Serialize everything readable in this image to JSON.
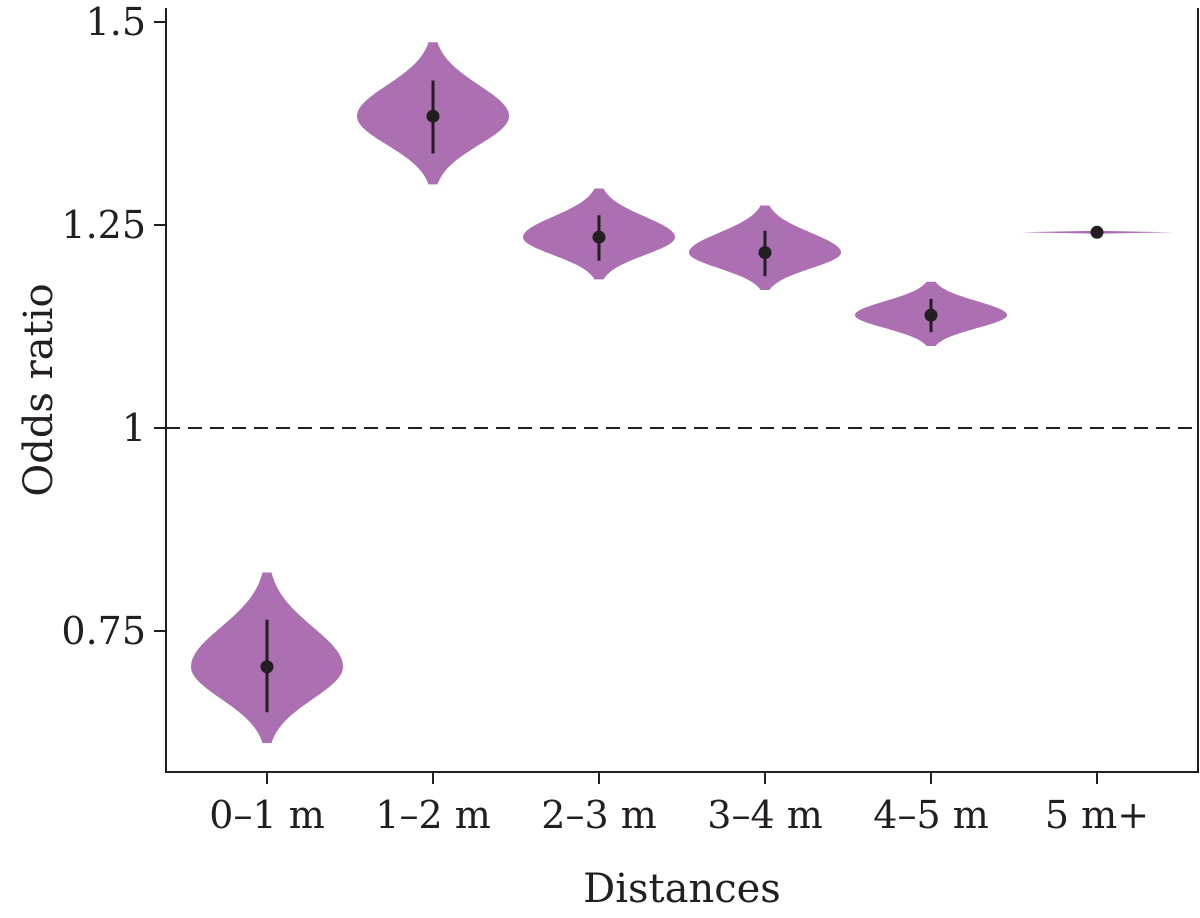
{
  "chart_data": {
    "type": "violin",
    "title": "",
    "xlabel": "Distances",
    "ylabel": "Odds ratio",
    "ylim": [
      0.58,
      1.51
    ],
    "yticks": [
      0.75,
      1,
      1.25,
      1.5
    ],
    "ytick_labels": [
      "0.75",
      "1",
      "1.25",
      "1.5"
    ],
    "reference_line": 1,
    "grid": false,
    "legend": "none",
    "color": "#ab6fb2",
    "categories": [
      "0–1 m",
      "1–2 m",
      "2–3 m",
      "3–4 m",
      "4–5 m",
      "5 m+"
    ],
    "series": [
      {
        "category": "0–1 m",
        "median": 0.706,
        "ci_low": 0.65,
        "ci_high": 0.764,
        "min": 0.612,
        "max": 0.822
      },
      {
        "category": "1–2 m",
        "median": 1.384,
        "ci_low": 1.338,
        "ci_high": 1.428,
        "min": 1.3,
        "max": 1.475
      },
      {
        "category": "2–3 m",
        "median": 1.235,
        "ci_low": 1.206,
        "ci_high": 1.262,
        "min": 1.183,
        "max": 1.295
      },
      {
        "category": "3–4 m",
        "median": 1.216,
        "ci_low": 1.187,
        "ci_high": 1.243,
        "min": 1.17,
        "max": 1.274
      },
      {
        "category": "4–5 m",
        "median": 1.139,
        "ci_low": 1.118,
        "ci_high": 1.159,
        "min": 1.101,
        "max": 1.18
      },
      {
        "category": "5 m+",
        "median": 1.241,
        "ci_low": 1.241,
        "ci_high": 1.241,
        "min": 1.24,
        "max": 1.242
      }
    ]
  }
}
